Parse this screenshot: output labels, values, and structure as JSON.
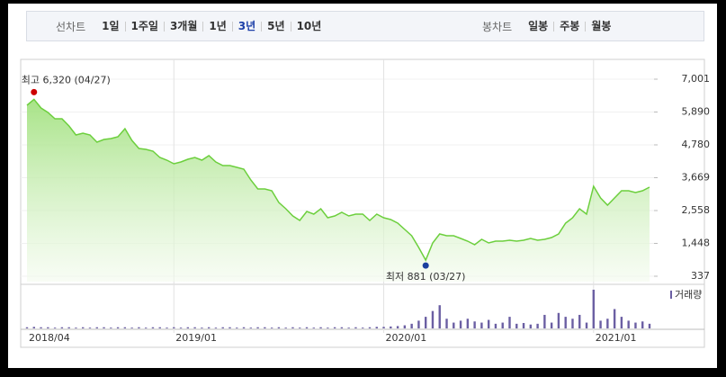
{
  "toolbar": {
    "line_chart_label": "선차트",
    "periods": [
      "1일",
      "1주일",
      "3개월",
      "1년",
      "3년",
      "5년",
      "10년"
    ],
    "selected_period": 4,
    "candle_chart_label": "봉차트",
    "candle_periods": [
      "일봉",
      "주봉",
      "월봉"
    ]
  },
  "chart_data": {
    "type": "line",
    "categories": [
      "2018/04",
      null,
      null,
      null,
      null,
      null,
      null,
      null,
      null,
      null,
      null,
      null,
      null,
      null,
      null,
      null,
      null,
      null,
      null,
      null,
      null,
      "2019/01",
      null,
      null,
      null,
      null,
      null,
      null,
      null,
      null,
      null,
      null,
      null,
      null,
      null,
      null,
      null,
      null,
      null,
      null,
      null,
      null,
      null,
      null,
      null,
      null,
      null,
      null,
      null,
      null,
      null,
      "2020/01",
      null,
      null,
      null,
      null,
      null,
      null,
      null,
      null,
      null,
      null,
      null,
      null,
      null,
      null,
      null,
      null,
      null,
      null,
      null,
      null,
      null,
      null,
      null,
      null,
      null,
      null,
      null,
      null,
      null,
      "2021/01",
      null,
      null,
      null,
      null,
      null,
      null,
      null,
      null
    ],
    "series": [
      {
        "color": "#6ccf3d",
        "values": [
          6119,
          6320,
          6027,
          5875,
          5662,
          5662,
          5419,
          5114,
          5175,
          5114,
          4871,
          4962,
          4993,
          5053,
          5327,
          4932,
          4658,
          4627,
          4567,
          4354,
          4262,
          4141,
          4201,
          4293,
          4354,
          4262,
          4414,
          4201,
          4080,
          4080,
          4019,
          3958,
          3593,
          3289,
          3289,
          3228,
          2832,
          2619,
          2376,
          2223,
          2528,
          2436,
          2619,
          2315,
          2376,
          2497,
          2376,
          2436,
          2436,
          2223,
          2436,
          2315,
          2254,
          2132,
          1919,
          1706,
          1311,
          881,
          1463,
          1767,
          1706,
          1706,
          1615,
          1524,
          1402,
          1584,
          1463,
          1524,
          1524,
          1554,
          1524,
          1554,
          1615,
          1554,
          1584,
          1645,
          1767,
          2132,
          2315,
          2619,
          2436,
          3380,
          2984,
          2741,
          2984,
          3228,
          3228,
          3167,
          3228,
          3349
        ]
      }
    ],
    "ylim": [
      337,
      7001
    ],
    "yticks": [
      337,
      {
        "value": 1448,
        "label": "1,448"
      },
      {
        "value": 2558,
        "label": "2,558"
      },
      {
        "value": 3669,
        "label": "3,669"
      },
      {
        "value": 4780,
        "label": "4,780"
      },
      {
        "value": 5890,
        "label": "5,890"
      },
      {
        "value": 7001,
        "label": "7,001"
      }
    ],
    "grid": true,
    "annotations": [
      {
        "text": "최고 6,320 (04/27)",
        "color": "#cc0000"
      },
      {
        "text": "최저 881 (03/27)",
        "color": "#1a3f9e"
      }
    ],
    "volume": {
      "name": "거래량",
      "color": "#6b5fa3",
      "ylim": [
        0,
        100
      ],
      "values": [
        3,
        4,
        3,
        3,
        2,
        3,
        3,
        2,
        3,
        2,
        3,
        3,
        2,
        3,
        3,
        2,
        3,
        2,
        3,
        3,
        2,
        3,
        2,
        3,
        3,
        2,
        3,
        2,
        3,
        3,
        2,
        3,
        2,
        3,
        3,
        2,
        3,
        2,
        3,
        2,
        3,
        2,
        3,
        2,
        3,
        3,
        2,
        3,
        2,
        3,
        4,
        4,
        5,
        6,
        8,
        12,
        20,
        30,
        45,
        60,
        25,
        15,
        20,
        25,
        18,
        15,
        22,
        12,
        15,
        30,
        12,
        14,
        10,
        12,
        35,
        15,
        40,
        30,
        25,
        35,
        15,
        100,
        20,
        25,
        50,
        30,
        20,
        15,
        18,
        12
      ]
    }
  }
}
